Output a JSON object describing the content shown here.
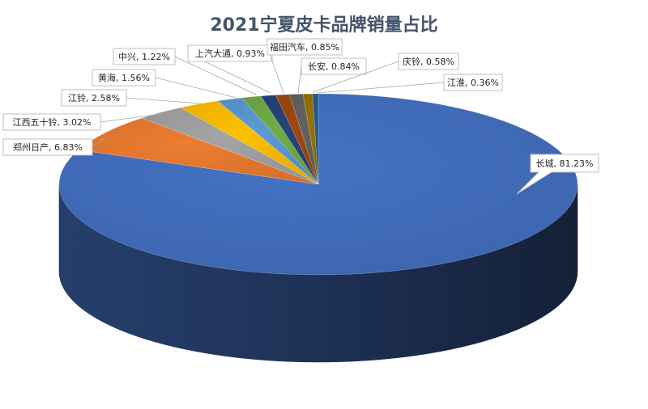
{
  "chart_data": {
    "type": "pie",
    "title": "2021宁夏皮卡品牌销量占比",
    "categories": [
      "长城",
      "郑州日产",
      "江西五十铃",
      "江铃",
      "黄海",
      "中兴",
      "上汽大通",
      "福田汽车",
      "长安",
      "庆铃",
      "江淮"
    ],
    "values": [
      81.23,
      6.83,
      3.02,
      2.58,
      1.56,
      1.22,
      0.93,
      0.85,
      0.84,
      0.58,
      0.36
    ],
    "unit": "%",
    "labels": [
      "长城, 81.23%",
      "郑州日产, 6.83%",
      "江西五十铃, 3.02%",
      "江铃, 2.58%",
      "黄海, 1.56%",
      "中兴, 1.22%",
      "上汽大通, 0.93%",
      "福田汽车, 0.85%",
      "长安, 0.84%",
      "庆铃, 0.58%",
      "江淮, 0.36%"
    ],
    "colors": [
      "#4472c4",
      "#ed7d31",
      "#a5a5a5",
      "#ffc000",
      "#5b9bd5",
      "#70ad47",
      "#264478",
      "#9e480e",
      "#636363",
      "#997300",
      "#255e91"
    ],
    "style": "3d-pie",
    "legend": "none"
  }
}
